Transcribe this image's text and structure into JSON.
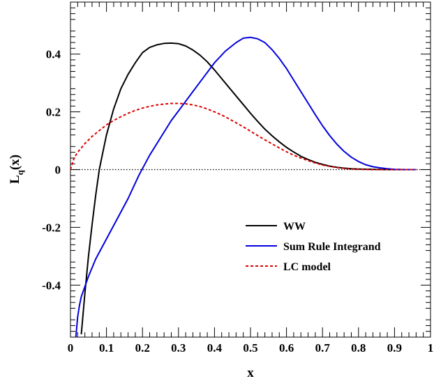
{
  "chart_data": {
    "type": "line",
    "xlabel": "x",
    "ylabel": "L",
    "ylabel_sub": "q",
    "ylabel_arg": "(x)",
    "xlim": [
      0,
      1
    ],
    "ylim": [
      -0.58,
      0.58
    ],
    "x_ticks": [
      0,
      0.1,
      0.2,
      0.3,
      0.4,
      0.5,
      0.6,
      0.7,
      0.8,
      0.9,
      1
    ],
    "x_tick_labels": [
      "0",
      "0.1",
      "0.2",
      "0.3",
      "0.4",
      "0.5",
      "0.6",
      "0.7",
      "0.8",
      "0.9",
      "1"
    ],
    "y_ticks": [
      -0.4,
      -0.2,
      0,
      0.2,
      0.4
    ],
    "y_tick_labels": [
      "-0.4",
      "-0.2",
      "0",
      "0.2",
      "0.4"
    ],
    "grid": false,
    "zero_line": true,
    "legend_position": "bottom-right",
    "series": [
      {
        "name": "WW",
        "color": "#000000",
        "style": "solid",
        "points": [
          [
            0.03,
            -0.57
          ],
          [
            0.04,
            -0.43
          ],
          [
            0.05,
            -0.3
          ],
          [
            0.06,
            -0.19
          ],
          [
            0.07,
            -0.09
          ],
          [
            0.08,
            0.0
          ],
          [
            0.09,
            0.06
          ],
          [
            0.1,
            0.12
          ],
          [
            0.12,
            0.21
          ],
          [
            0.14,
            0.28
          ],
          [
            0.16,
            0.33
          ],
          [
            0.18,
            0.37
          ],
          [
            0.2,
            0.405
          ],
          [
            0.22,
            0.423
          ],
          [
            0.24,
            0.432
          ],
          [
            0.26,
            0.437
          ],
          [
            0.28,
            0.438
          ],
          [
            0.3,
            0.436
          ],
          [
            0.32,
            0.428
          ],
          [
            0.34,
            0.414
          ],
          [
            0.36,
            0.396
          ],
          [
            0.38,
            0.373
          ],
          [
            0.4,
            0.345
          ],
          [
            0.42,
            0.315
          ],
          [
            0.44,
            0.285
          ],
          [
            0.46,
            0.255
          ],
          [
            0.48,
            0.225
          ],
          [
            0.5,
            0.195
          ],
          [
            0.52,
            0.167
          ],
          [
            0.54,
            0.14
          ],
          [
            0.56,
            0.117
          ],
          [
            0.58,
            0.096
          ],
          [
            0.6,
            0.077
          ],
          [
            0.62,
            0.061
          ],
          [
            0.64,
            0.046
          ],
          [
            0.66,
            0.035
          ],
          [
            0.68,
            0.025
          ],
          [
            0.7,
            0.018
          ],
          [
            0.72,
            0.012
          ],
          [
            0.74,
            0.008
          ],
          [
            0.76,
            0.005
          ],
          [
            0.78,
            0.003
          ],
          [
            0.8,
            0.002
          ],
          [
            0.84,
            0.001
          ],
          [
            0.88,
            0.0
          ],
          [
            0.96,
            0.0
          ]
        ]
      },
      {
        "name": "Sum Rule Integrand",
        "color": "#0000dd",
        "style": "solid",
        "points": [
          [
            0.015,
            -0.58
          ],
          [
            0.02,
            -0.51
          ],
          [
            0.025,
            -0.47
          ],
          [
            0.03,
            -0.44
          ],
          [
            0.05,
            -0.37
          ],
          [
            0.07,
            -0.31
          ],
          [
            0.1,
            -0.24
          ],
          [
            0.13,
            -0.17
          ],
          [
            0.16,
            -0.1
          ],
          [
            0.19,
            -0.02
          ],
          [
            0.22,
            0.05
          ],
          [
            0.25,
            0.11
          ],
          [
            0.28,
            0.17
          ],
          [
            0.31,
            0.22
          ],
          [
            0.34,
            0.27
          ],
          [
            0.37,
            0.32
          ],
          [
            0.4,
            0.37
          ],
          [
            0.43,
            0.41
          ],
          [
            0.46,
            0.44
          ],
          [
            0.48,
            0.455
          ],
          [
            0.5,
            0.458
          ],
          [
            0.52,
            0.453
          ],
          [
            0.54,
            0.44
          ],
          [
            0.56,
            0.415
          ],
          [
            0.58,
            0.385
          ],
          [
            0.6,
            0.35
          ],
          [
            0.62,
            0.31
          ],
          [
            0.64,
            0.27
          ],
          [
            0.66,
            0.23
          ],
          [
            0.68,
            0.19
          ],
          [
            0.7,
            0.152
          ],
          [
            0.72,
            0.118
          ],
          [
            0.74,
            0.088
          ],
          [
            0.76,
            0.063
          ],
          [
            0.78,
            0.043
          ],
          [
            0.8,
            0.028
          ],
          [
            0.82,
            0.017
          ],
          [
            0.84,
            0.01
          ],
          [
            0.86,
            0.006
          ],
          [
            0.88,
            0.003
          ],
          [
            0.9,
            0.001
          ],
          [
            0.93,
            0.0
          ],
          [
            0.96,
            0.0
          ]
        ]
      },
      {
        "name": "LC model",
        "color": "#dd0000",
        "style": "dashed",
        "points": [
          [
            0.0,
            0.0
          ],
          [
            0.01,
            0.04
          ],
          [
            0.02,
            0.06
          ],
          [
            0.04,
            0.09
          ],
          [
            0.06,
            0.115
          ],
          [
            0.08,
            0.135
          ],
          [
            0.1,
            0.155
          ],
          [
            0.12,
            0.17
          ],
          [
            0.14,
            0.183
          ],
          [
            0.16,
            0.195
          ],
          [
            0.18,
            0.205
          ],
          [
            0.2,
            0.213
          ],
          [
            0.22,
            0.219
          ],
          [
            0.24,
            0.224
          ],
          [
            0.26,
            0.227
          ],
          [
            0.28,
            0.229
          ],
          [
            0.3,
            0.229
          ],
          [
            0.32,
            0.228
          ],
          [
            0.34,
            0.224
          ],
          [
            0.36,
            0.218
          ],
          [
            0.38,
            0.21
          ],
          [
            0.4,
            0.2
          ],
          [
            0.42,
            0.189
          ],
          [
            0.44,
            0.176
          ],
          [
            0.46,
            0.162
          ],
          [
            0.48,
            0.148
          ],
          [
            0.5,
            0.133
          ],
          [
            0.52,
            0.118
          ],
          [
            0.54,
            0.103
          ],
          [
            0.56,
            0.089
          ],
          [
            0.58,
            0.075
          ],
          [
            0.6,
            0.062
          ],
          [
            0.62,
            0.05
          ],
          [
            0.64,
            0.04
          ],
          [
            0.66,
            0.031
          ],
          [
            0.68,
            0.023
          ],
          [
            0.7,
            0.016
          ],
          [
            0.72,
            0.011
          ],
          [
            0.74,
            0.007
          ],
          [
            0.76,
            0.004
          ],
          [
            0.78,
            0.002
          ],
          [
            0.8,
            0.001
          ],
          [
            0.84,
            0.0
          ],
          [
            0.96,
            0.0
          ]
        ]
      }
    ]
  }
}
